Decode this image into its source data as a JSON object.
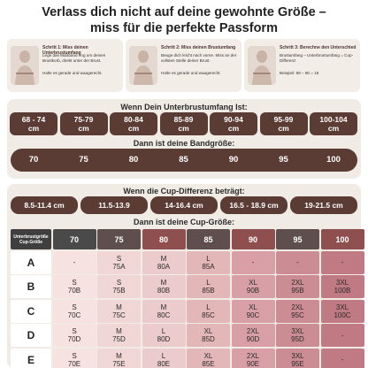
{
  "header": {
    "title_line1": "Verlass dich nicht auf deine gewohnte Größe –",
    "title_line2": "miss für die perfekte Passform"
  },
  "steps": [
    {
      "title": "Schritt 1: Miss deinen Unterbrustumfang",
      "lines": [
        "Lege das Maßband eng um deinen Brustkorb, direkt unter der Brust.",
        "Halte es gerade und waagerecht."
      ]
    },
    {
      "title": "Schritt 2: Miss deinen Brustumfang",
      "lines": [
        "Beuge dich leicht nach vorne. Miss an der vollsten Stelle deiner Brust.",
        "Halte es gerade und waagerecht."
      ]
    },
    {
      "title": "Schritt 3: Berechne den Unterschied",
      "lines": [
        "Brustumfang – Unterbrustumfang = Cup-Differenz",
        "Beispiel: 98 – 80 = 18"
      ]
    }
  ],
  "band_section": {
    "heading": "Wenn Dein Unterbrustumfang Ist:",
    "ranges": [
      [
        "68 - 74",
        "cm"
      ],
      [
        "75-79",
        "cm"
      ],
      [
        "80-84",
        "cm"
      ],
      [
        "85-89",
        "cm"
      ],
      [
        "90-94",
        "cm"
      ],
      [
        "95-99",
        "cm"
      ],
      [
        "100-104",
        "cm"
      ]
    ],
    "subheading": "Dann ist deine Bandgröße:",
    "bands": [
      70,
      75,
      80,
      85,
      90,
      95,
      100
    ]
  },
  "cup_section": {
    "heading": "Wenn die Cup-Differenz beträgt:",
    "differences": [
      "8.5-11.4 cm",
      "11.5-13.9",
      "14-16.4 cm",
      "16.5 - 18.9 cm",
      "19-21.5 cm"
    ],
    "subheading": "Dann ist deine Cup-Größe:",
    "table": {
      "corner": [
        "Unterbrustgröße",
        "Cup-Größe"
      ],
      "columns": [
        70,
        75,
        80,
        85,
        90,
        95,
        100
      ],
      "rows": [
        {
          "cup": "A",
          "cells": [
            "-",
            {
              "size": "S",
              "code": "75A"
            },
            {
              "size": "M",
              "code": "80A"
            },
            {
              "size": "L",
              "code": "85A"
            },
            "-",
            "-",
            "-"
          ]
        },
        {
          "cup": "B",
          "cells": [
            {
              "size": "S",
              "code": "70B"
            },
            {
              "size": "S",
              "code": "75B"
            },
            {
              "size": "M",
              "code": "80B"
            },
            {
              "size": "L",
              "code": "85B"
            },
            {
              "size": "XL",
              "code": "90B"
            },
            {
              "size": "2XL",
              "code": "95B"
            },
            {
              "size": "3XL",
              "code": "100B"
            }
          ]
        },
        {
          "cup": "C",
          "cells": [
            {
              "size": "S",
              "code": "70C"
            },
            {
              "size": "M",
              "code": "75C"
            },
            {
              "size": "M",
              "code": "80C"
            },
            {
              "size": "L",
              "code": "85C"
            },
            {
              "size": "XL",
              "code": "90C"
            },
            {
              "size": "2XL",
              "code": "95C"
            },
            {
              "size": "3XL",
              "code": "100C"
            }
          ]
        },
        {
          "cup": "D",
          "cells": [
            {
              "size": "S",
              "code": "70D"
            },
            {
              "size": "M",
              "code": "75D"
            },
            {
              "size": "L",
              "code": "80D"
            },
            {
              "size": "XL",
              "code": "85D"
            },
            {
              "size": "2XL",
              "code": "90D"
            },
            {
              "size": "3XL",
              "code": "95D"
            },
            "-"
          ]
        },
        {
          "cup": "E",
          "cells": [
            {
              "size": "S",
              "code": "70E"
            },
            {
              "size": "M",
              "code": "75E"
            },
            {
              "size": "L",
              "code": "80E"
            },
            {
              "size": "XL",
              "code": "85E"
            },
            {
              "size": "2XL",
              "code": "90E"
            },
            {
              "size": "3XL",
              "code": "95E"
            },
            "-"
          ]
        }
      ]
    }
  }
}
